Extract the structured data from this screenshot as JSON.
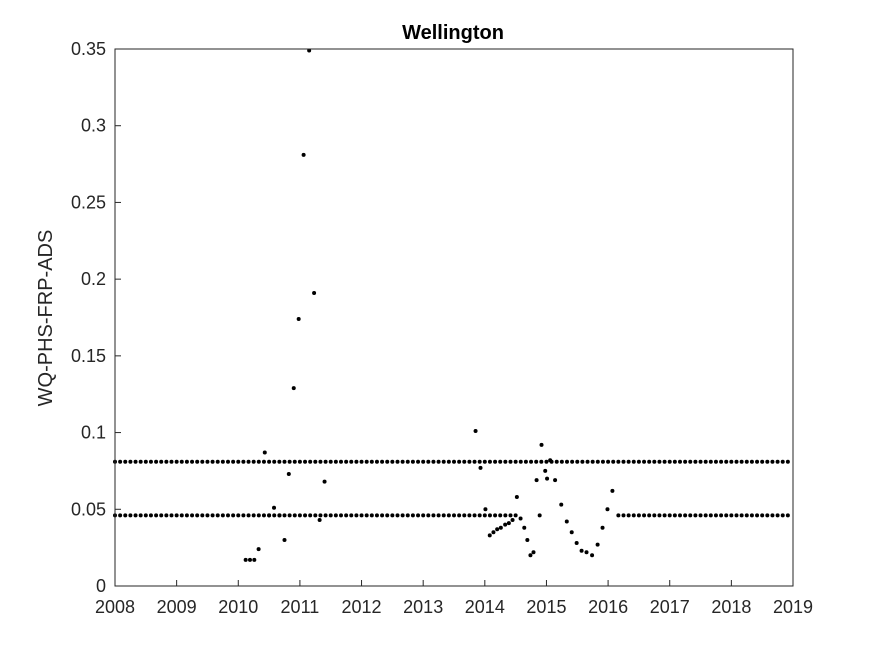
{
  "chart_data": {
    "type": "scatter",
    "title": "Wellington",
    "xlabel": "",
    "ylabel": "WQ-PHS-FRP-ADS",
    "xlim": [
      2008,
      2019
    ],
    "ylim": [
      0,
      0.35
    ],
    "xticks": [
      "2008",
      "2009",
      "2010",
      "2011",
      "2012",
      "2013",
      "2014",
      "2015",
      "2016",
      "2017",
      "2018",
      "2019"
    ],
    "yticks": [
      "0",
      "0.05",
      "0.1",
      "0.15",
      "0.2",
      "0.25",
      "0.3",
      "0.35"
    ],
    "grid": false,
    "marker_color": "#000000",
    "series": [
      {
        "values_note_x": "decimal year",
        "x": [
          2010.12,
          2010.19,
          2010.26,
          2010.33,
          2010.43,
          2010.5,
          2010.58,
          2010.67,
          2010.75,
          2010.82,
          2010.9,
          2010.98,
          2011.06,
          2011.15,
          2011.23,
          2011.32,
          2011.4,
          2013.85,
          2013.93,
          2014.01,
          2014.08,
          2014.14,
          2014.2,
          2014.26,
          2014.33,
          2014.39,
          2014.45,
          2014.52,
          2014.58,
          2014.64,
          2014.69,
          2014.74,
          2014.79,
          2014.84,
          2014.89,
          2014.92,
          2014.98,
          2015.01,
          2015.06,
          2015.14,
          2015.24,
          2015.33,
          2015.41,
          2015.49,
          2015.57,
          2015.65,
          2015.74,
          2015.83,
          2015.91,
          2015.99,
          2016.07
        ],
        "y": [
          0.017,
          0.017,
          0.017,
          0.024,
          0.087,
          0.046,
          0.051,
          0.046,
          0.03,
          0.073,
          0.129,
          0.174,
          0.281,
          0.349,
          0.191,
          0.043,
          0.068,
          0.101,
          0.077,
          0.05,
          0.033,
          0.035,
          0.037,
          0.038,
          0.04,
          0.041,
          0.043,
          0.058,
          0.044,
          0.038,
          0.03,
          0.02,
          0.022,
          0.069,
          0.046,
          0.092,
          0.075,
          0.07,
          0.082,
          0.069,
          0.053,
          0.042,
          0.035,
          0.028,
          0.023,
          0.022,
          0.02,
          0.027,
          0.038,
          0.05,
          0.062
        ]
      },
      {
        "name": "",
        "pattern": "monthly",
        "x_start": 2008.0,
        "x_end": 2018.92,
        "y": 0.081
      },
      {
        "name": "",
        "pattern": "monthly",
        "x_start": 2008.0,
        "x_end": 2018.92,
        "y": 0.046,
        "gaps": [
          [
            2014.55,
            2016.1
          ]
        ]
      }
    ]
  }
}
